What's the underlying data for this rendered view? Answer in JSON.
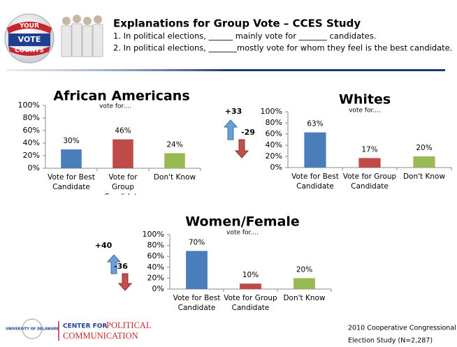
{
  "header": {
    "title": "Explanations for Group Vote – CCES Study",
    "lines": [
      "1.  In political elections, ______ mainly vote for _______  candidates.",
      "2. In political elections, _______mostly vote for whom they feel is the best candidate."
    ]
  },
  "logo": {
    "top": "YOUR",
    "middle": "VOTE",
    "bottom": "COUNTS"
  },
  "chart_data": [
    {
      "type": "bar",
      "title": "African Americans",
      "subtitle": "vote for....",
      "categories": [
        "Vote for Best Candidate",
        "Vote for Group Candidate",
        "Don't Know"
      ],
      "values": [
        30,
        46,
        24
      ],
      "value_labels": [
        "30%",
        "46%",
        "24%"
      ],
      "colors": [
        "#4a7ebb",
        "#be4b48",
        "#98b954"
      ],
      "ylim": [
        0,
        100
      ],
      "yticks": [
        {
          "value": 0,
          "label": "0%"
        },
        {
          "value": 20,
          "label": "20%"
        },
        {
          "value": 40,
          "label": "40%"
        },
        {
          "value": 60,
          "label": "60%"
        },
        {
          "value": 80,
          "label": "80%"
        },
        {
          "value": 100,
          "label": "100%"
        }
      ]
    },
    {
      "type": "bar",
      "title": "Whites",
      "subtitle": "vote for....",
      "categories": [
        "Vote for Best Candidate",
        "Vote for Group Candidate",
        "Don't Know"
      ],
      "values": [
        63,
        17,
        20
      ],
      "value_labels": [
        "63%",
        "17%",
        "20%"
      ],
      "colors": [
        "#4a7ebb",
        "#be4b48",
        "#98b954"
      ],
      "ylim": [
        0,
        100
      ],
      "yticks": [
        {
          "value": 0,
          "label": "0%"
        },
        {
          "value": 20,
          "label": "20%"
        },
        {
          "value": 40,
          "label": "40%"
        },
        {
          "value": 60,
          "label": "60%"
        },
        {
          "value": 80,
          "label": "80%"
        },
        {
          "value": 100,
          "label": "100%"
        }
      ]
    },
    {
      "type": "bar",
      "title": "Women/Female",
      "subtitle": "vote for....",
      "categories": [
        "Vote for Best Candidate",
        "Vote for Group Candidate",
        "Don't Know"
      ],
      "values": [
        70,
        10,
        20
      ],
      "value_labels": [
        "70%",
        "10%",
        "20%"
      ],
      "colors": [
        "#4a7ebb",
        "#be4b48",
        "#98b954"
      ],
      "ylim": [
        0,
        100
      ],
      "yticks": [
        {
          "value": 0,
          "label": "0%"
        },
        {
          "value": 20,
          "label": "20%"
        },
        {
          "value": 40,
          "label": "40%"
        },
        {
          "value": 60,
          "label": "60%"
        },
        {
          "value": 80,
          "label": "80%"
        },
        {
          "value": 100,
          "label": "100%"
        }
      ]
    }
  ],
  "arrows": [
    {
      "up": "+33",
      "down": "-29"
    },
    {
      "up": "+40",
      "down": "-36"
    }
  ],
  "footer": {
    "university": "UNIVERSITY OF DELAWARE",
    "center_top": "CENTER FOR",
    "center_big": "POLITICAL",
    "center_bottom": "COMMUNICATION",
    "source": [
      "2010 Cooperative Congressional",
      "Election Study (N=2,287)"
    ]
  }
}
